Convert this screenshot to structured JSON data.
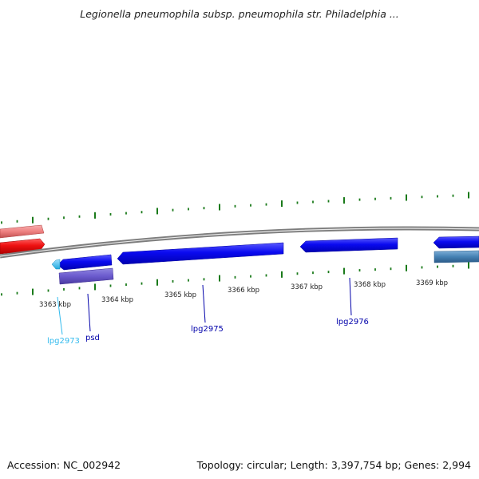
{
  "title": "Legionella pneumophila subsp. pneumophila str. Philadelphia ...",
  "footer": {
    "accession_label": "Accession: NC_002942",
    "summary_label": "Topology: circular; Length: 3,397,754 bp; Genes: 2,994"
  },
  "ruler": {
    "ticks": [
      "3363 kbp",
      "3364 kbp",
      "3365 kbp",
      "3366 kbp",
      "3367 kbp",
      "3368 kbp",
      "3369 kbp"
    ]
  },
  "genes": [
    {
      "label": "lpg2973",
      "color": "#33bbee"
    },
    {
      "label": "psd",
      "color": "#0000aa"
    },
    {
      "label": "lpg2975",
      "color": "#0000aa"
    },
    {
      "label": "lpg2976",
      "color": "#0000aa"
    }
  ],
  "colors": {
    "backbone": "#8a8a8a",
    "forward_gene": "#0a0af0",
    "reverse_gene": "#ee1111",
    "pseudo_gene": "#ee8080",
    "rna_feature": "#6a5acd",
    "steelblue_feature": "#4682b4",
    "tick": "#1a7a1a"
  }
}
